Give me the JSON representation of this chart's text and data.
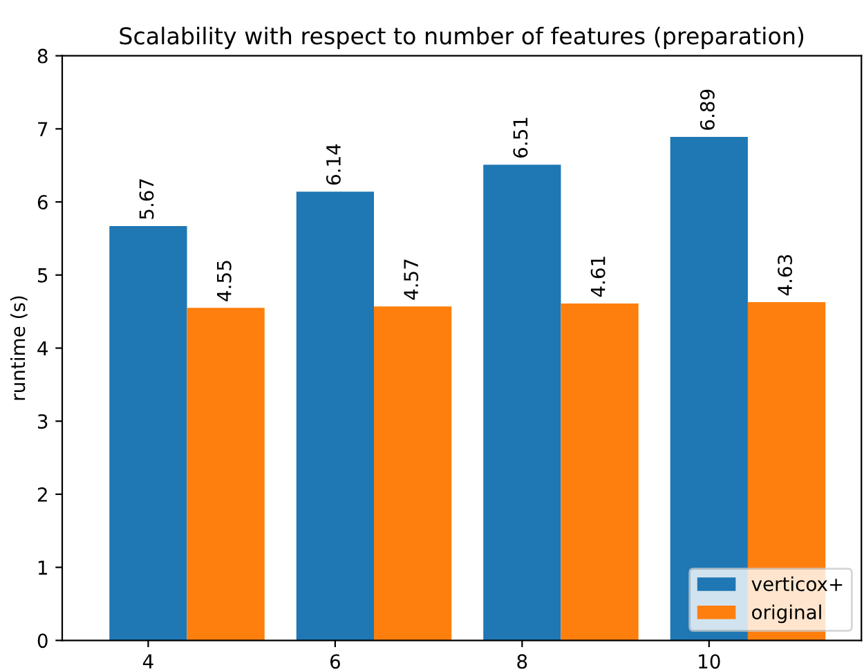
{
  "chart_data": {
    "type": "bar",
    "title": "Scalability with respect to number of features (preparation)",
    "ylabel": "runtime (s)",
    "categories": [
      "4",
      "6",
      "8",
      "10"
    ],
    "series": [
      {
        "name": "verticox+",
        "color": "#1f77b4",
        "values": [
          5.67,
          6.14,
          6.51,
          6.89
        ]
      },
      {
        "name": "original",
        "color": "#ff7f0e",
        "values": [
          4.55,
          4.57,
          4.61,
          4.63
        ]
      }
    ],
    "ylim": [
      0,
      8
    ],
    "yticks": [
      0,
      1,
      2,
      3,
      4,
      5,
      6,
      7,
      8
    ],
    "data_labels": true,
    "legend": "lower right",
    "grid": false
  }
}
